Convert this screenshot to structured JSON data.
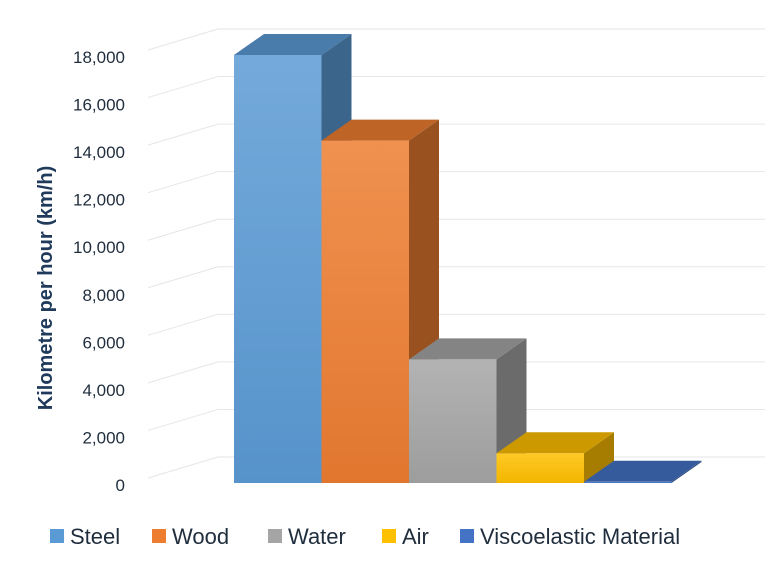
{
  "chart_data": {
    "type": "bar",
    "style": "3d-column",
    "title": "",
    "xlabel": "",
    "ylabel": "Kilometre per hour (km/h)",
    "ylim": [
      0,
      18000
    ],
    "yticks": [
      0,
      2000,
      4000,
      6000,
      8000,
      10000,
      12000,
      14000,
      16000,
      18000
    ],
    "ytick_labels": [
      "0",
      "2,000",
      "4,000",
      "6,000",
      "8,000",
      "10,000",
      "12,000",
      "14,000",
      "16,000",
      "18,000"
    ],
    "grid": true,
    "legend_position": "bottom",
    "series": [
      {
        "name": "Steel",
        "value": 18000,
        "color": "#5b9bd5"
      },
      {
        "name": "Wood",
        "value": 14400,
        "color": "#ed7d31"
      },
      {
        "name": "Water",
        "value": 5200,
        "color": "#a5a5a5"
      },
      {
        "name": "Air",
        "value": 1250,
        "color": "#ffc000"
      },
      {
        "name": "Viscoelastic Material",
        "value": 50,
        "color": "#4472c4"
      }
    ]
  }
}
